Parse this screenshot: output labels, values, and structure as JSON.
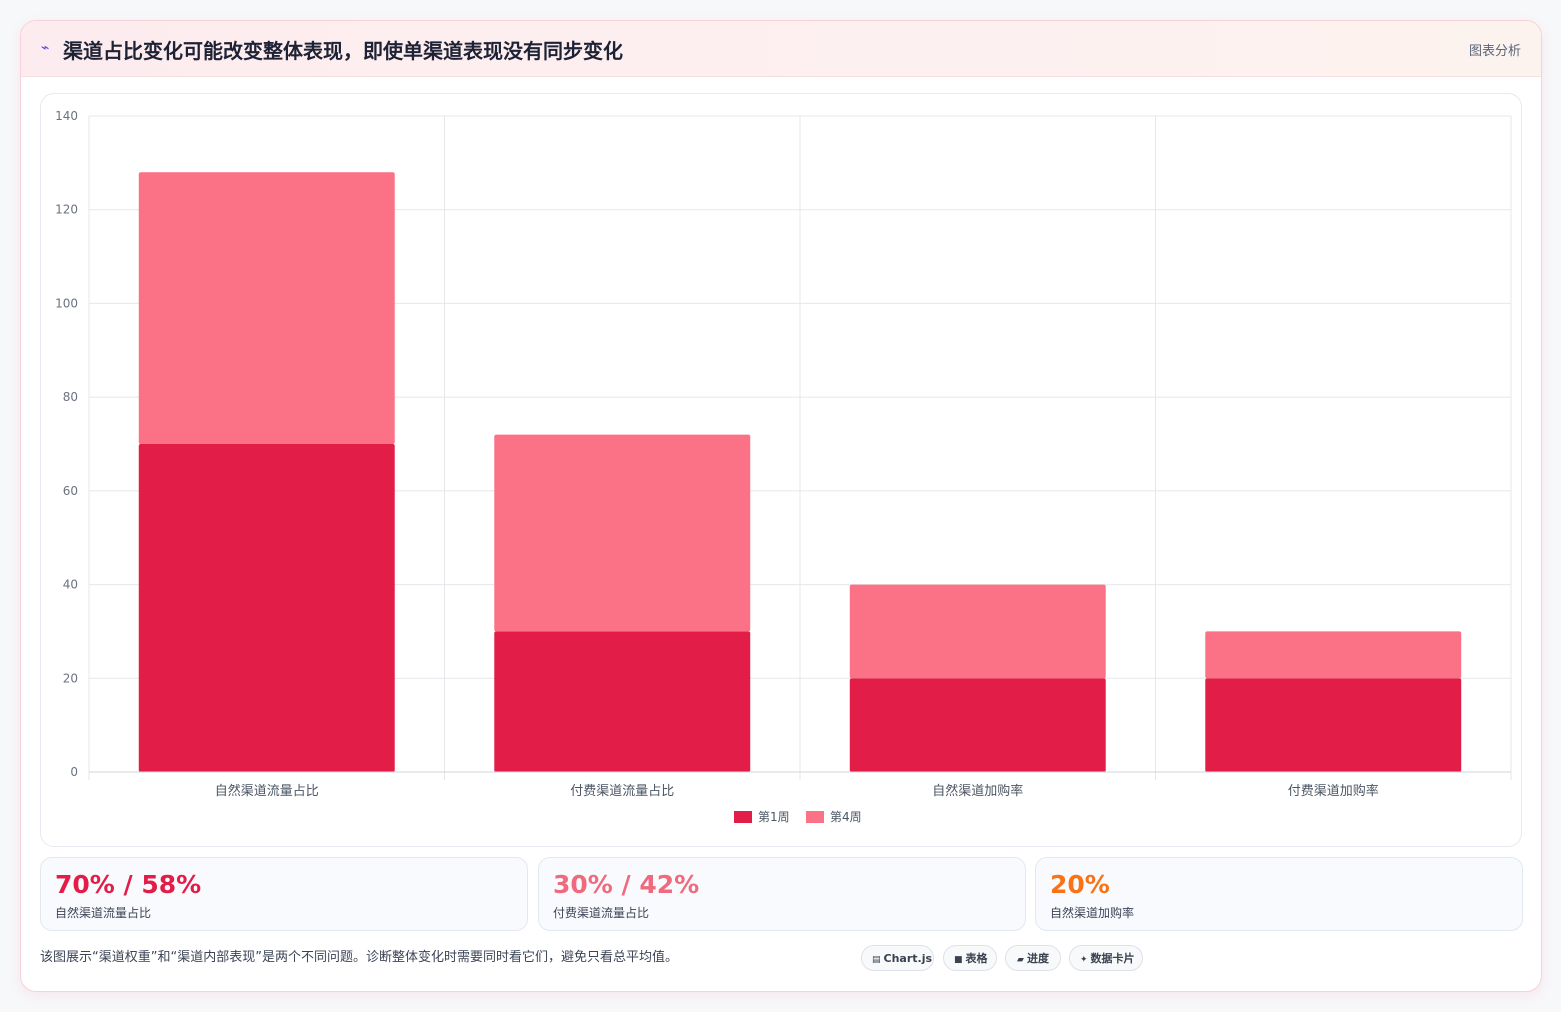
{
  "header": {
    "icon": "sparkle-icon",
    "title": "渠道占比变化可能改变整体表现，即使单渠道表现没有同步变化",
    "tag": "图表分析"
  },
  "chart_data": {
    "type": "bar",
    "stacked": true,
    "categories": [
      "自然渠道流量占比",
      "付费渠道流量占比",
      "自然渠道加购率",
      "付费渠道加购率"
    ],
    "series": [
      {
        "name": "第1周",
        "color": "#e11d48",
        "values": [
          70,
          30,
          20,
          20
        ]
      },
      {
        "name": "第4周",
        "color": "#fb7185",
        "values": [
          58,
          42,
          20,
          10
        ]
      }
    ],
    "ylim": [
      0,
      140
    ],
    "yticks": [
      0,
      20,
      40,
      60,
      80,
      100,
      120,
      140
    ],
    "grid": true,
    "legend": "bottom"
  },
  "stats": [
    {
      "value": "70% / 58%",
      "label": "自然渠道流量占比",
      "color": "#e11d48"
    },
    {
      "value": "30% / 42%",
      "label": "付费渠道流量占比",
      "color": "#f06a7e"
    },
    {
      "value": "20%",
      "label": "自然渠道加购率",
      "color": "#f97316"
    }
  ],
  "footer": {
    "note": "该图展示“渠道权重”和“渠道内部表现”是两个不同问题。诊断整体变化时需要同时看它们，避免只看总平均值。",
    "pills": [
      {
        "icon": "chart-icon",
        "glyph": "▤",
        "label": "Chart.js"
      },
      {
        "icon": "table-icon",
        "glyph": "■",
        "label": "表格"
      },
      {
        "icon": "progress-icon",
        "glyph": "▰",
        "label": "进度"
      },
      {
        "icon": "card-icon",
        "glyph": "✦",
        "label": "数据卡片"
      }
    ]
  }
}
